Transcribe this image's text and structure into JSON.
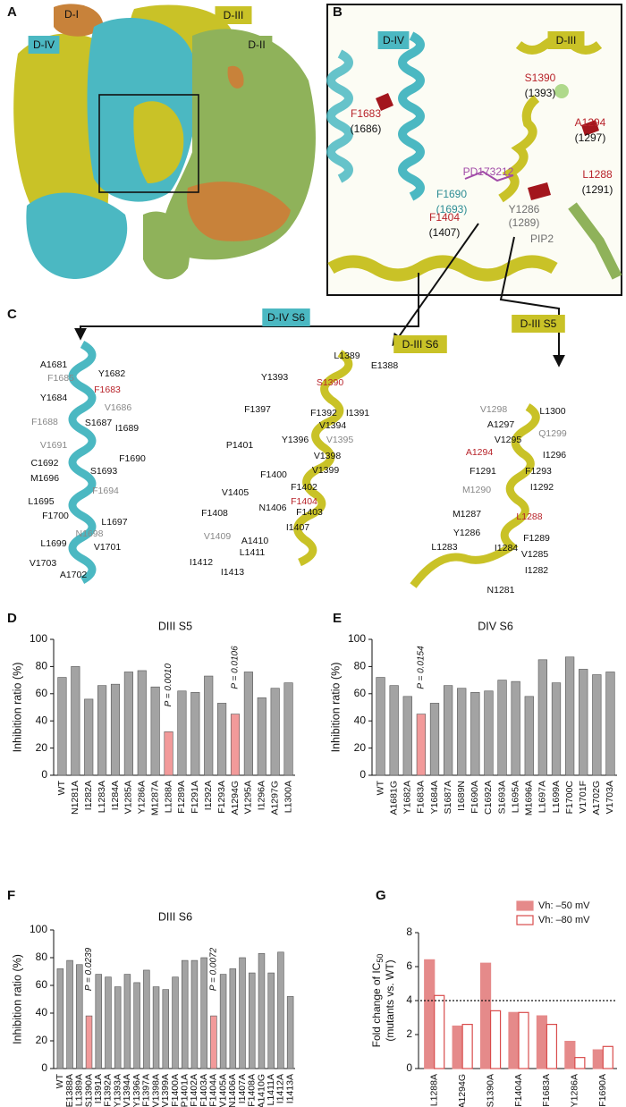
{
  "panel_letters": [
    "A",
    "B",
    "C",
    "D",
    "E",
    "F",
    "G"
  ],
  "panel_a": {
    "domains": [
      {
        "label": "D-I",
        "color": "#c8823a"
      },
      {
        "label": "D-IV",
        "color": "#4bb8c2"
      },
      {
        "label": "D-III",
        "color": "#c9c227"
      },
      {
        "label": "D-II",
        "color": "#8fb25a"
      }
    ]
  },
  "panel_b": {
    "domains": [
      {
        "label": "D-IV",
        "color": "#4bb8c2"
      },
      {
        "label": "D-III",
        "color": "#c9c227"
      }
    ],
    "labels": [
      {
        "label": "F1683",
        "color": "#b8232a"
      },
      {
        "label": "(1686)",
        "color": "#111111"
      },
      {
        "label": "S1390",
        "color": "#b8232a"
      },
      {
        "label": "(1393)",
        "color": "#111111"
      },
      {
        "label": "A1294",
        "color": "#b8232a"
      },
      {
        "label": "(1297)",
        "color": "#111111"
      },
      {
        "label": "PD173212",
        "color": "#a24ca8"
      },
      {
        "label": "F1690",
        "color": "#2c8c94"
      },
      {
        "label": "(1693)",
        "color": "#2c8c94"
      },
      {
        "label": "L1288",
        "color": "#b8232a"
      },
      {
        "label": "(1291)",
        "color": "#111111"
      },
      {
        "label": "F1404",
        "color": "#b8232a"
      },
      {
        "label": "(1407)",
        "color": "#111111"
      },
      {
        "label": "Y1286",
        "color": "#6f6f6f"
      },
      {
        "label": "(1289)",
        "color": "#6f6f6f"
      },
      {
        "label": "PIP2",
        "color": "#6f6f6f"
      }
    ]
  },
  "panel_c": {
    "groups": [
      {
        "title": "D-IV S6",
        "color": "#4bb8c2",
        "residues": [
          {
            "label": "A1681",
            "color": "#111111"
          },
          {
            "label": "Y1682",
            "color": "#111111"
          },
          {
            "label": "F1685",
            "color": "#888888"
          },
          {
            "label": "F1683",
            "color": "#b8232a"
          },
          {
            "label": "Y1684",
            "color": "#111111"
          },
          {
            "label": "V1686",
            "color": "#888888"
          },
          {
            "label": "F1688",
            "color": "#888888"
          },
          {
            "label": "S1687",
            "color": "#111111"
          },
          {
            "label": "I1689",
            "color": "#111111"
          },
          {
            "label": "V1691",
            "color": "#888888"
          },
          {
            "label": "F1690",
            "color": "#111111"
          },
          {
            "label": "C1692",
            "color": "#111111"
          },
          {
            "label": "S1693",
            "color": "#111111"
          },
          {
            "label": "M1696",
            "color": "#111111"
          },
          {
            "label": "F1694",
            "color": "#888888"
          },
          {
            "label": "L1695",
            "color": "#111111"
          },
          {
            "label": "F1700",
            "color": "#111111"
          },
          {
            "label": "L1697",
            "color": "#111111"
          },
          {
            "label": "N1698",
            "color": "#888888"
          },
          {
            "label": "L1699",
            "color": "#111111"
          },
          {
            "label": "V1701",
            "color": "#111111"
          },
          {
            "label": "V1703",
            "color": "#111111"
          },
          {
            "label": "A1702",
            "color": "#111111"
          }
        ]
      },
      {
        "title": "D-III S6",
        "color": "#c9c227",
        "residues": [
          {
            "label": "L1389",
            "color": "#111111"
          },
          {
            "label": "E1388",
            "color": "#111111"
          },
          {
            "label": "Y1393",
            "color": "#111111"
          },
          {
            "label": "S1390",
            "color": "#b8232a"
          },
          {
            "label": "F1397",
            "color": "#111111"
          },
          {
            "label": "F1392",
            "color": "#111111"
          },
          {
            "label": "I1391",
            "color": "#111111"
          },
          {
            "label": "V1394",
            "color": "#111111"
          },
          {
            "label": "Y1396",
            "color": "#111111"
          },
          {
            "label": "V1395",
            "color": "#888888"
          },
          {
            "label": "P1401",
            "color": "#111111"
          },
          {
            "label": "V1398",
            "color": "#111111"
          },
          {
            "label": "F1400",
            "color": "#111111"
          },
          {
            "label": "V1399",
            "color": "#111111"
          },
          {
            "label": "F1402",
            "color": "#111111"
          },
          {
            "label": "V1405",
            "color": "#111111"
          },
          {
            "label": "F1404",
            "color": "#b8232a"
          },
          {
            "label": "N1406",
            "color": "#111111"
          },
          {
            "label": "F1403",
            "color": "#111111"
          },
          {
            "label": "F1408",
            "color": "#111111"
          },
          {
            "label": "I1407",
            "color": "#111111"
          },
          {
            "label": "V1409",
            "color": "#888888"
          },
          {
            "label": "A1410",
            "color": "#111111"
          },
          {
            "label": "L1411",
            "color": "#111111"
          },
          {
            "label": "I1412",
            "color": "#111111"
          },
          {
            "label": "I1413",
            "color": "#111111"
          }
        ]
      },
      {
        "title": "D-III S5",
        "color": "#c9c227",
        "residues": [
          {
            "label": "V1298",
            "color": "#888888"
          },
          {
            "label": "L1300",
            "color": "#111111"
          },
          {
            "label": "A1297",
            "color": "#111111"
          },
          {
            "label": "Q1299",
            "color": "#888888"
          },
          {
            "label": "V1295",
            "color": "#111111"
          },
          {
            "label": "I1296",
            "color": "#111111"
          },
          {
            "label": "A1294",
            "color": "#b8232a"
          },
          {
            "label": "F1291",
            "color": "#111111"
          },
          {
            "label": "F1293",
            "color": "#111111"
          },
          {
            "label": "M1290",
            "color": "#888888"
          },
          {
            "label": "I1292",
            "color": "#111111"
          },
          {
            "label": "M1287",
            "color": "#111111"
          },
          {
            "label": "L1288",
            "color": "#b8232a"
          },
          {
            "label": "Y1286",
            "color": "#111111"
          },
          {
            "label": "F1289",
            "color": "#111111"
          },
          {
            "label": "I1284",
            "color": "#111111"
          },
          {
            "label": "L1283",
            "color": "#111111"
          },
          {
            "label": "V1285",
            "color": "#111111"
          },
          {
            "label": "I1282",
            "color": "#111111"
          },
          {
            "label": "N1281",
            "color": "#111111"
          }
        ]
      }
    ]
  },
  "chart_data": [
    {
      "type": "bar",
      "title": "DIII S5",
      "ylabel": "Inhibition ratio (%)",
      "categories": [
        "WT",
        "N1281A",
        "I1282A",
        "L1283A",
        "I1284A",
        "V1285A",
        "Y1286A",
        "M1287A",
        "L1288A",
        "F1289A",
        "F1291A",
        "I1292A",
        "F1293A",
        "A1294G",
        "V1295A",
        "I1296A",
        "A1297G",
        "L1300A"
      ],
      "values": [
        72,
        80,
        56,
        66,
        67,
        76,
        77,
        65,
        32,
        62,
        61,
        73,
        53,
        45,
        76,
        57,
        64,
        68
      ],
      "colors": [
        "#a3a3a3",
        "#a3a3a3",
        "#a3a3a3",
        "#a3a3a3",
        "#a3a3a3",
        "#a3a3a3",
        "#a3a3a3",
        "#a3a3a3",
        "#f29a9a",
        "#a3a3a3",
        "#a3a3a3",
        "#a3a3a3",
        "#a3a3a3",
        "#f29a9a",
        "#a3a3a3",
        "#a3a3a3",
        "#a3a3a3",
        "#a3a3a3"
      ],
      "annotations": [
        {
          "text": "P = 0.0010",
          "category": "L1288A"
        },
        {
          "text": "P = 0.0106",
          "category": "A1294G"
        }
      ],
      "ylim": [
        0,
        100
      ],
      "yticks": [
        0,
        20,
        40,
        60,
        80,
        100
      ]
    },
    {
      "type": "bar",
      "title": "DIV S6",
      "ylabel": "Inhibition ratio (%)",
      "categories": [
        "WT",
        "A1681G",
        "Y1682A",
        "F1683A",
        "Y1684A",
        "S1687A",
        "I1689N",
        "F1690A",
        "C1692A",
        "S1693A",
        "L1695A",
        "M1696A",
        "L1697A",
        "L1699A",
        "F1700C",
        "V1701F",
        "A1702G",
        "V1703A"
      ],
      "values": [
        72,
        66,
        58,
        45,
        53,
        66,
        64,
        61,
        62,
        70,
        69,
        58,
        85,
        68,
        87,
        78,
        74,
        76
      ],
      "colors": [
        "#a3a3a3",
        "#a3a3a3",
        "#a3a3a3",
        "#f29a9a",
        "#a3a3a3",
        "#a3a3a3",
        "#a3a3a3",
        "#a3a3a3",
        "#a3a3a3",
        "#a3a3a3",
        "#a3a3a3",
        "#a3a3a3",
        "#a3a3a3",
        "#a3a3a3",
        "#a3a3a3",
        "#a3a3a3",
        "#a3a3a3",
        "#a3a3a3"
      ],
      "annotations": [
        {
          "text": "P = 0.0154",
          "category": "F1683A"
        }
      ],
      "ylim": [
        0,
        100
      ],
      "yticks": [
        0,
        20,
        40,
        60,
        80,
        100
      ]
    },
    {
      "type": "bar",
      "title": "DIII S6",
      "ylabel": "Inhibition ratio (%)",
      "categories": [
        "WT",
        "E1388A",
        "L1389A",
        "S1390A",
        "I1391A",
        "F1392A",
        "Y1393A",
        "V1394A",
        "Y1396A",
        "F1397A",
        "V1398A",
        "V1399A",
        "F1400A",
        "P1401A",
        "F1402A",
        "F1403A",
        "F1404A",
        "V1405A",
        "N1406A",
        "I1407A",
        "F1408A",
        "A1410G",
        "L1411A",
        "I1412A",
        "I1413A"
      ],
      "values": [
        72,
        78,
        75,
        38,
        68,
        66,
        59,
        68,
        62,
        71,
        59,
        57,
        66,
        78,
        78,
        80,
        38,
        68,
        72,
        80,
        69,
        83,
        69,
        84,
        52
      ],
      "colors": [
        "#a3a3a3",
        "#a3a3a3",
        "#a3a3a3",
        "#f29a9a",
        "#a3a3a3",
        "#a3a3a3",
        "#a3a3a3",
        "#a3a3a3",
        "#a3a3a3",
        "#a3a3a3",
        "#a3a3a3",
        "#a3a3a3",
        "#a3a3a3",
        "#a3a3a3",
        "#a3a3a3",
        "#a3a3a3",
        "#f29a9a",
        "#a3a3a3",
        "#a3a3a3",
        "#a3a3a3",
        "#a3a3a3",
        "#a3a3a3",
        "#a3a3a3",
        "#a3a3a3",
        "#a3a3a3"
      ],
      "annotations": [
        {
          "text": "P = 0.0239",
          "category": "S1390A"
        },
        {
          "text": "P = 0.0072",
          "category": "F1404A"
        }
      ],
      "ylim": [
        0,
        100
      ],
      "yticks": [
        0,
        20,
        40,
        60,
        80,
        100
      ]
    },
    {
      "type": "grouped_bar",
      "ylabel": [
        "Fold change of IC",
        "50",
        "(mutants vs. WT)"
      ],
      "categories": [
        "L1288A",
        "A1294G",
        "S1390A",
        "F1404A",
        "F1683A",
        "Y1286A",
        "F1690A"
      ],
      "series": [
        {
          "name": "Vh: –50 mV",
          "color": "#e58a8a",
          "style": "filled",
          "values": [
            6.4,
            2.5,
            6.2,
            3.3,
            3.1,
            1.6,
            1.1
          ]
        },
        {
          "name": "Vh: –80 mV",
          "color": "#d94c4c",
          "style": "outline",
          "values": [
            4.3,
            2.6,
            3.4,
            3.3,
            2.6,
            0.65,
            1.3
          ]
        }
      ],
      "reference_line": 4,
      "legend": "upper right",
      "ylim": [
        0,
        8
      ],
      "yticks": [
        0,
        2,
        4,
        6,
        8
      ]
    }
  ]
}
